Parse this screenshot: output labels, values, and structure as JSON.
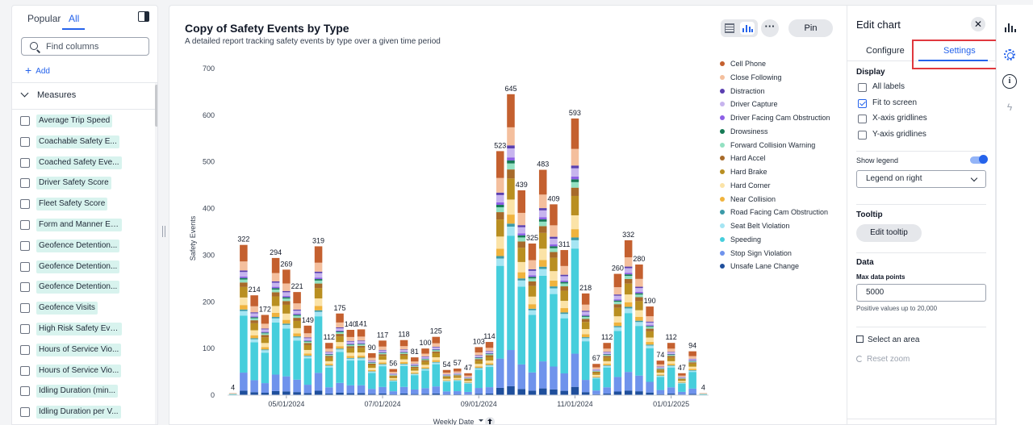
{
  "left_panel": {
    "tabs": [
      "Popular",
      "All"
    ],
    "active_tab": "All",
    "search_placeholder": "Find columns",
    "add_label": "Add",
    "section_label": "Measures",
    "measures": [
      "Average Trip Speed",
      "Coachable Safety E...",
      "Coached Safety Eve...",
      "Driver Safety Score",
      "Fleet Safety Score",
      "Form and Manner Er...",
      "Geofence Detention...",
      "Geofence Detention...",
      "Geofence Detention...",
      "Geofence Visits",
      "High Risk Safety Eve...",
      "Hours of Service Vio...",
      "Hours of Service Vio...",
      "Idling Duration (min...",
      "Idling Duration per V..."
    ]
  },
  "chart_header": {
    "title": "Copy of Safety Events by Type",
    "subtitle": "A detailed report tracking safety events by type over a given time period",
    "pin_label": "Pin",
    "more_label": "···"
  },
  "chart_data": {
    "type": "bar",
    "stacked": true,
    "title": "Copy of Safety Events by Type",
    "xlabel": "Weekly Date",
    "ylabel": "Safety Events",
    "ylim": [
      0,
      700
    ],
    "yticks": [
      0,
      100,
      200,
      300,
      400,
      500,
      600,
      700
    ],
    "xtick_labels": [
      "05/01/2024",
      "07/01/2024",
      "09/01/2024",
      "11/01/2024",
      "01/01/2025",
      "03/01/2025",
      "05/01/2025"
    ],
    "xtick_index": [
      5,
      14,
      23,
      32,
      41,
      50,
      59
    ],
    "legend_position": "right",
    "totals": [
      4,
      322,
      214,
      172,
      294,
      269,
      221,
      149,
      319,
      112,
      175,
      140,
      141,
      90,
      117,
      56,
      118,
      81,
      100,
      125,
      54,
      57,
      47,
      103,
      114,
      523,
      645,
      439,
      325,
      483,
      409,
      311,
      593,
      218,
      67,
      112,
      260,
      332,
      280,
      190,
      74,
      112,
      47,
      94,
      4
    ],
    "label_shown": [
      true,
      true,
      true,
      true,
      true,
      true,
      true,
      true,
      true,
      true,
      true,
      true,
      true,
      true,
      true,
      true,
      true,
      true,
      true,
      true,
      true,
      true,
      true,
      true,
      true,
      true,
      true,
      true,
      true,
      true,
      true,
      true,
      true,
      true,
      true,
      true,
      true,
      true,
      true,
      true,
      true,
      true,
      true,
      true,
      true
    ],
    "series": [
      {
        "name": "Cell Phone",
        "color": "#c4602f"
      },
      {
        "name": "Close Following",
        "color": "#f4bf9d"
      },
      {
        "name": "Distraction",
        "color": "#5a3fb0"
      },
      {
        "name": "Driver Capture",
        "color": "#c7b4ee"
      },
      {
        "name": "Driver Facing Cam Obstruction",
        "color": "#8d5fe6"
      },
      {
        "name": "Drowsiness",
        "color": "#167a55"
      },
      {
        "name": "Forward Collision Warning",
        "color": "#93e1c2"
      },
      {
        "name": "Hard Accel",
        "color": "#a76a2a"
      },
      {
        "name": "Hard Brake",
        "color": "#b98f21"
      },
      {
        "name": "Hard Corner",
        "color": "#fbe3a7"
      },
      {
        "name": "Near Collision",
        "color": "#f0b33d"
      },
      {
        "name": "Road Facing Cam Obstruction",
        "color": "#3b9aa8"
      },
      {
        "name": "Seat Belt Violation",
        "color": "#a5e5f3"
      },
      {
        "name": "Speeding",
        "color": "#46cedc"
      },
      {
        "name": "Stop Sign Violation",
        "color": "#6f93ec"
      },
      {
        "name": "Unsafe Lane Change",
        "color": "#1f4f9c"
      }
    ]
  },
  "edit_panel": {
    "title": "Edit chart",
    "close_label": "✕",
    "tabs": [
      "Configure",
      "Settings"
    ],
    "active_tab": "Settings",
    "display_label": "Display",
    "display_options": [
      {
        "label": "All labels",
        "checked": false
      },
      {
        "label": "Fit to screen",
        "checked": true
      },
      {
        "label": "X-axis gridlines",
        "checked": false
      },
      {
        "label": "Y-axis gridlines",
        "checked": false
      }
    ],
    "show_legend_label": "Show legend",
    "legend_select": "Legend on right",
    "tooltip_label": "Tooltip",
    "edit_tooltip_label": "Edit tooltip",
    "data_label": "Data",
    "max_points_label": "Max data points",
    "max_points_value": "5000",
    "max_points_hint": "Positive values up to 20,000",
    "select_area_label": "Select an area",
    "reset_zoom_label": "Reset zoom"
  },
  "rail": {
    "info_label": "i",
    "bolt_label": "ϟ"
  },
  "colors": {
    "accent": "#2563eb",
    "highlight": "#e0383e"
  }
}
